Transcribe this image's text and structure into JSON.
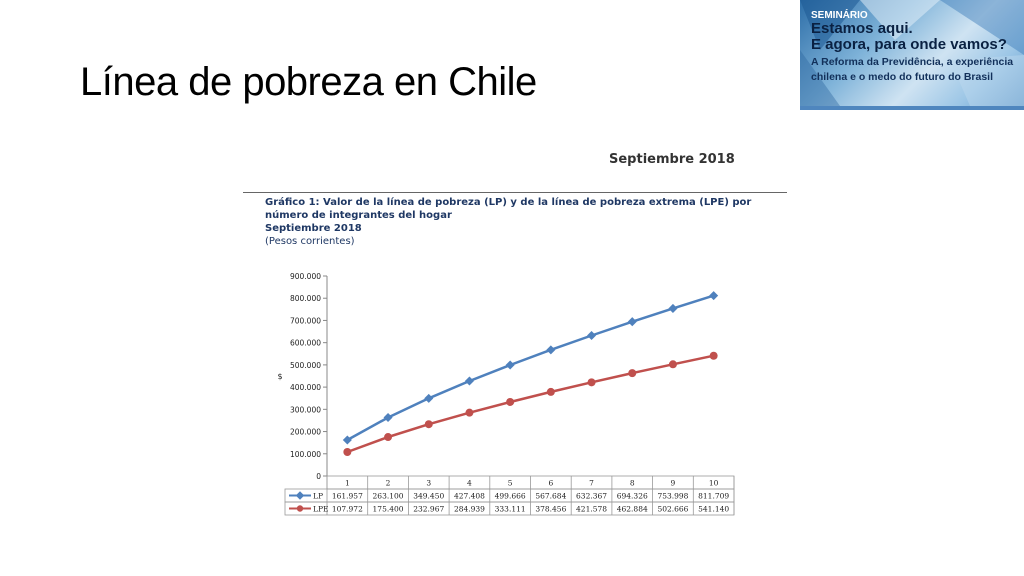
{
  "slide": {
    "title": "Línea de pobreza en Chile"
  },
  "banner": {
    "kicker": "SEMINÁRIO",
    "headline_1": "Estamos aqui.",
    "headline_2": "E agora, para onde vamos?",
    "subtitle_1": "A Reforma da Previdência, a experiência",
    "subtitle_2": "chilena e o medo do futuro do Brasil"
  },
  "section": {
    "heading": "Septiembre 2018",
    "caption_title_1": "Gráfico 1: Valor de la línea de pobreza (LP) y de la línea de pobreza extrema (LPE) por",
    "caption_title_2": "número de integrantes del hogar",
    "caption_period": "Septiembre 2018",
    "caption_units": "(Pesos corrientes)"
  },
  "chart_data": {
    "type": "line",
    "ylabel": "$",
    "xlabel": "",
    "ylim": [
      0,
      900000
    ],
    "y_ticks": [
      "0",
      "100.000",
      "200.000",
      "300.000",
      "400.000",
      "500.000",
      "600.000",
      "700.000",
      "800.000",
      "900.000"
    ],
    "categories": [
      "1",
      "2",
      "3",
      "4",
      "5",
      "6",
      "7",
      "8",
      "9",
      "10"
    ],
    "legend_placement": "bottom-data-table",
    "series": [
      {
        "name": "LP",
        "color": "#4f81bd",
        "marker": "diamond",
        "values": [
          161957,
          263100,
          349450,
          427408,
          499666,
          567684,
          632367,
          694326,
          753998,
          811709
        ],
        "labels": [
          "161.957",
          "263.100",
          "349.450",
          "427.408",
          "499.666",
          "567.684",
          "632.367",
          "694.326",
          "753.998",
          "811.709"
        ]
      },
      {
        "name": "LPE",
        "color": "#c0504d",
        "marker": "circle",
        "values": [
          107972,
          175400,
          232967,
          284939,
          333111,
          378456,
          421578,
          462884,
          502666,
          541140
        ],
        "labels": [
          "107.972",
          "175.400",
          "232.967",
          "284.939",
          "333.111",
          "378.456",
          "421.578",
          "462.884",
          "502.666",
          "541.140"
        ]
      }
    ]
  }
}
